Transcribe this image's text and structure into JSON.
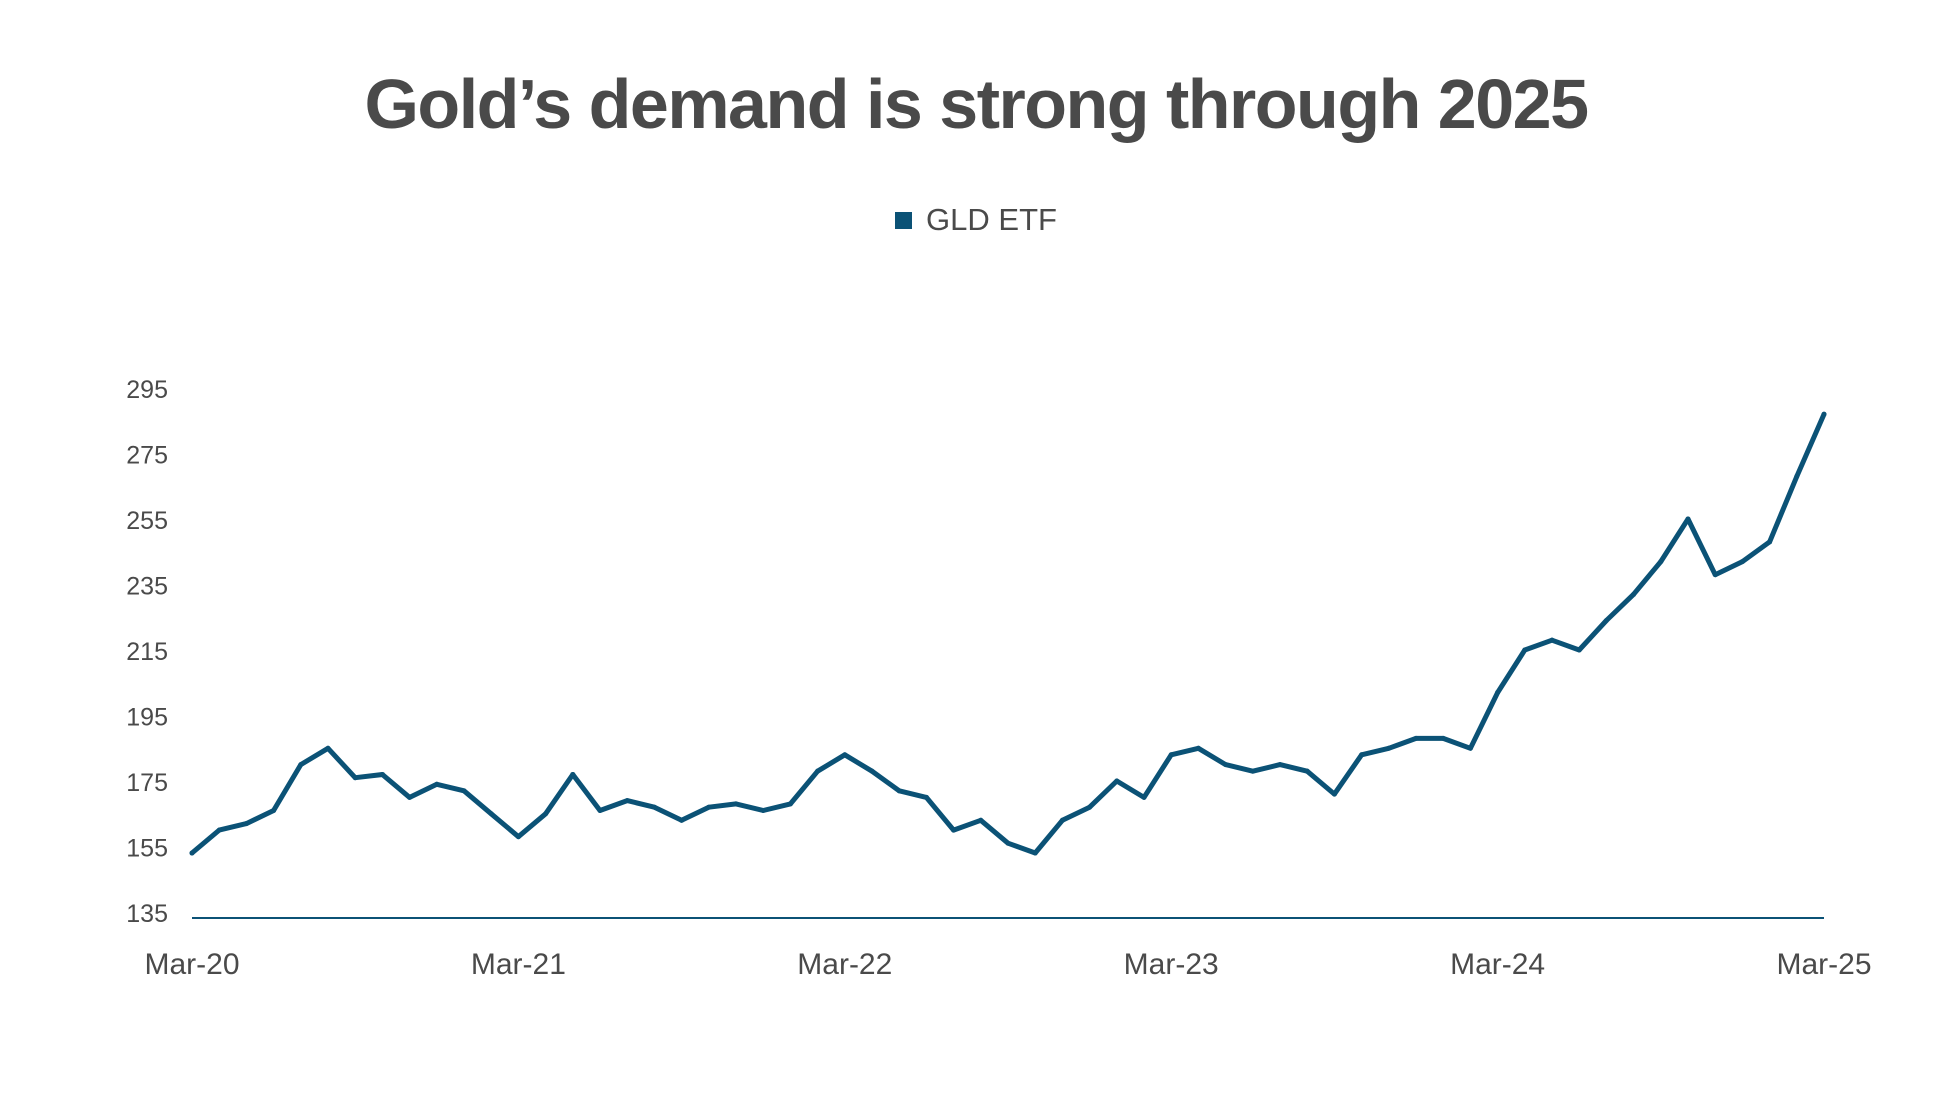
{
  "colors": {
    "series": "#0b5276",
    "text": "#4a4a4a",
    "axis": "#0b5276",
    "background": "#ffffff"
  },
  "legend_icon": "square-swatch-icon",
  "chart_data": {
    "type": "line",
    "title": "Gold’s demand is strong through 2025",
    "xlabel": "",
    "ylabel": "",
    "legend_position": "top-center",
    "grid": false,
    "xlim": [
      "2020-03",
      "2025-03"
    ],
    "ylim": [
      135,
      295
    ],
    "xticks": [
      "Mar-20",
      "Mar-21",
      "Mar-22",
      "Mar-23",
      "Mar-24",
      "Mar-25"
    ],
    "yticks": [
      "135",
      "155",
      "175",
      "195",
      "215",
      "235",
      "255",
      "275",
      "295"
    ],
    "series": [
      {
        "name": "GLD ETF",
        "x": [
          "2020-03",
          "2020-04",
          "2020-05",
          "2020-06",
          "2020-07",
          "2020-08",
          "2020-09",
          "2020-10",
          "2020-11",
          "2020-12",
          "2021-01",
          "2021-02",
          "2021-03",
          "2021-04",
          "2021-05",
          "2021-06",
          "2021-07",
          "2021-08",
          "2021-09",
          "2021-10",
          "2021-11",
          "2021-12",
          "2022-01",
          "2022-02",
          "2022-03",
          "2022-04",
          "2022-05",
          "2022-06",
          "2022-07",
          "2022-08",
          "2022-09",
          "2022-10",
          "2022-11",
          "2022-12",
          "2023-01",
          "2023-02",
          "2023-03",
          "2023-04",
          "2023-05",
          "2023-06",
          "2023-07",
          "2023-08",
          "2023-09",
          "2023-10",
          "2023-11",
          "2023-12",
          "2024-01",
          "2024-02",
          "2024-03",
          "2024-04",
          "2024-05",
          "2024-06",
          "2024-07",
          "2024-08",
          "2024-09",
          "2024-10",
          "2024-11",
          "2024-12",
          "2025-01",
          "2025-02",
          "2025-03"
        ],
        "values": [
          153,
          160,
          162,
          166,
          180,
          185,
          176,
          177,
          170,
          174,
          172,
          165,
          158,
          165,
          177,
          166,
          169,
          167,
          163,
          167,
          168,
          166,
          168,
          178,
          183,
          178,
          172,
          170,
          160,
          163,
          156,
          153,
          163,
          167,
          175,
          170,
          183,
          185,
          180,
          178,
          180,
          178,
          171,
          183,
          185,
          188,
          188,
          185,
          202,
          215,
          218,
          215,
          224,
          232,
          242,
          255,
          238,
          242,
          248,
          268,
          287
        ]
      }
    ]
  }
}
